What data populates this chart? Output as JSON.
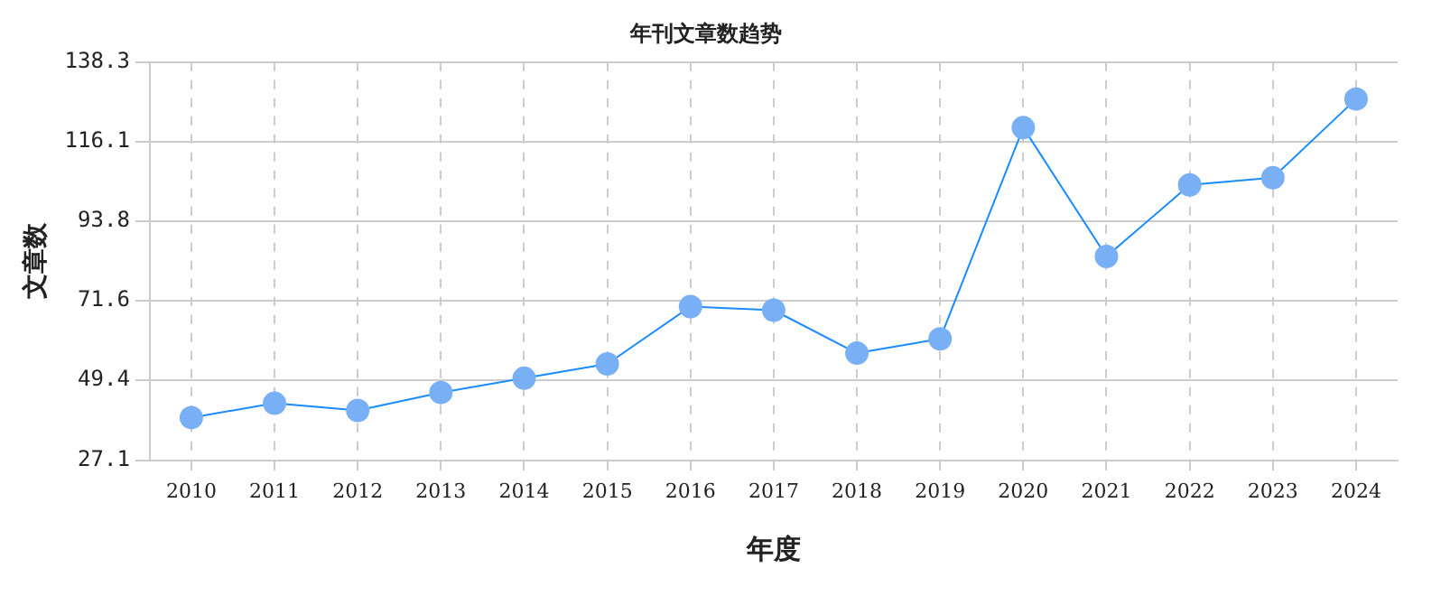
{
  "chart_data": {
    "type": "line",
    "title": "年刊文章数趋势",
    "xlabel": "年度",
    "ylabel": "文章数",
    "categories": [
      "2010",
      "2011",
      "2012",
      "2013",
      "2014",
      "2015",
      "2016",
      "2017",
      "2018",
      "2019",
      "2020",
      "2021",
      "2022",
      "2023",
      "2024"
    ],
    "series": [
      {
        "color": "#1a8cff",
        "values": [
          39,
          43,
          41,
          46,
          50,
          54,
          70,
          69,
          57,
          61,
          120,
          84,
          104,
          106,
          128
        ]
      }
    ],
    "ylim": [
      27.1,
      138.3
    ],
    "yticks": [
      27.1,
      49.4,
      71.6,
      93.8,
      116.1,
      138.3
    ],
    "grid": true,
    "marker": "circle",
    "line_style": "solid",
    "legend": false
  }
}
